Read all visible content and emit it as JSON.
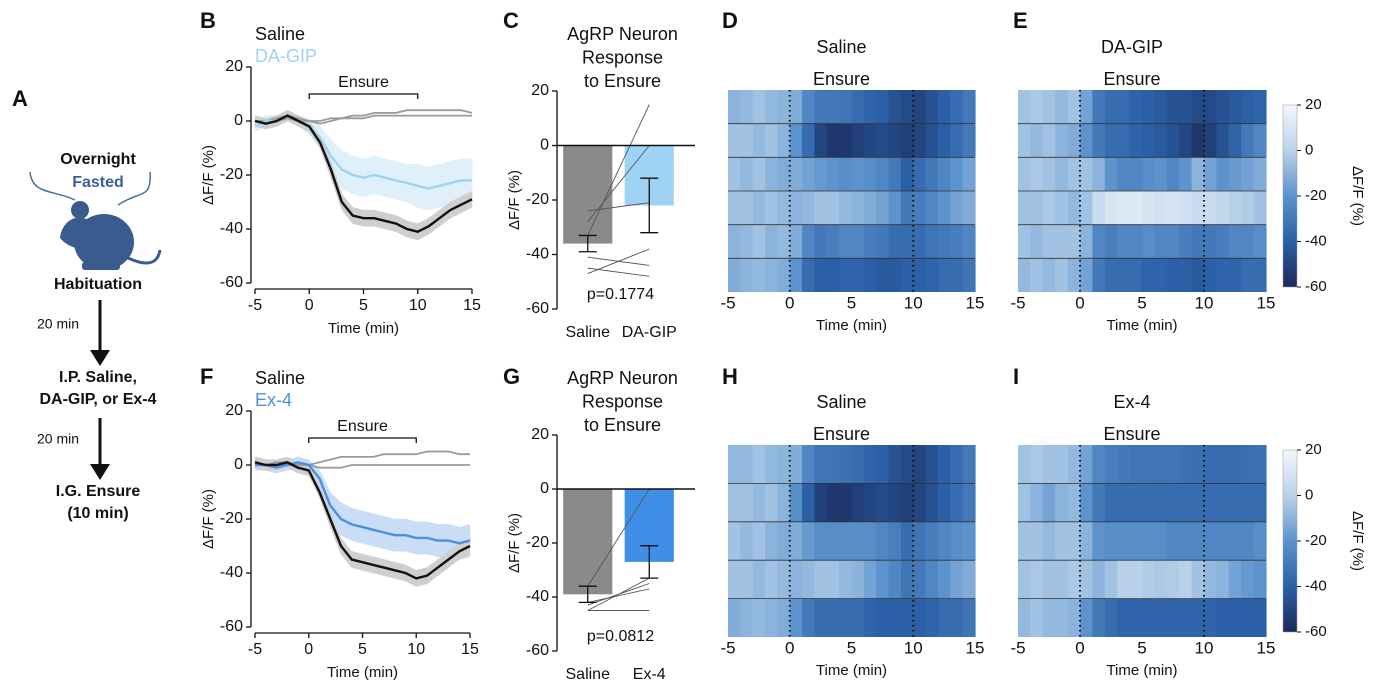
{
  "panel_a": {
    "label": "A",
    "step1": [
      "Overnight",
      "Fasted"
    ],
    "step1_after": "Habituation",
    "interval1": "20 min",
    "step2": [
      "I.P. Saline,",
      "DA-GIP, or Ex-4"
    ],
    "interval2": "20 min",
    "step3": [
      "I.G. Ensure",
      "(10 min)"
    ]
  },
  "chart_data": [
    {
      "panel": "B",
      "type": "line",
      "x": [
        -5,
        -4,
        -3,
        -2,
        -1,
        0,
        1,
        2,
        3,
        4,
        5,
        6,
        7,
        8,
        9,
        10,
        11,
        12,
        13,
        14,
        15
      ],
      "series": [
        {
          "color": "#9a9a9a",
          "values": [
            0,
            0,
            1,
            2,
            1,
            0,
            0,
            1,
            1,
            2,
            2,
            3,
            3,
            3,
            4,
            4,
            4,
            4,
            4,
            4,
            3
          ]
        },
        {
          "color": "#9a9a9a",
          "values": [
            0,
            0,
            0,
            1,
            0,
            0,
            -1,
            0,
            1,
            1,
            1,
            2,
            2,
            2,
            2,
            2,
            2,
            2,
            2,
            2,
            2
          ]
        },
        {
          "name": "DA-GIP",
          "color": "#9fd3f3",
          "band": "#dff0fb",
          "values": [
            -2,
            0,
            0,
            2,
            0,
            -2,
            -6,
            -13,
            -18,
            -20,
            -21,
            -20,
            -21,
            -22,
            -23,
            -24,
            -25,
            -24,
            -23,
            -22,
            -22
          ],
          "errors": [
            2,
            2,
            2,
            2,
            2,
            3,
            4,
            6,
            7,
            7,
            7,
            7,
            7,
            7,
            7,
            8,
            8,
            8,
            8,
            8,
            8
          ]
        },
        {
          "name": "Saline",
          "color": "#111111",
          "band": "#cfcfcf",
          "values": [
            0,
            -1,
            0,
            2,
            0,
            -2,
            -8,
            -18,
            -30,
            -35,
            -36,
            -36,
            -37,
            -38,
            -40,
            -41,
            -39,
            -36,
            -33,
            -31,
            -29
          ],
          "errors": [
            2,
            2,
            2,
            2,
            2,
            2,
            2,
            3,
            3,
            3,
            3,
            3,
            3,
            3,
            3,
            3,
            3,
            3,
            3,
            3,
            3
          ]
        }
      ],
      "legend_order": [
        3,
        2
      ],
      "annotation": {
        "text": "Ensure",
        "x": [
          0,
          10
        ],
        "y": 10
      },
      "xlim": [
        -5,
        15
      ],
      "xticks": [
        -5,
        0,
        5,
        10,
        15
      ],
      "ylim": [
        -60,
        20
      ],
      "yticks": [
        20,
        0,
        -20,
        -40,
        -60
      ],
      "xlabel": "Time (min)",
      "ylabel": "ΔF/F (%)"
    },
    {
      "panel": "C",
      "type": "bar",
      "title": [
        "AgRP Neuron",
        "Response",
        "to Ensure"
      ],
      "categories": [
        "Saline",
        "DA-GIP"
      ],
      "values": [
        -36,
        -22
      ],
      "errors": [
        3,
        10
      ],
      "colors": [
        "#8a8a8a",
        "#9fd3f5"
      ],
      "individuals": [
        [
          -33,
          15
        ],
        [
          -28,
          0
        ],
        [
          -24,
          -21
        ],
        [
          -41,
          -44
        ],
        [
          -45,
          -48
        ],
        [
          -47,
          -38
        ]
      ],
      "annotation": "p=0.1774",
      "ylim": [
        -60,
        20
      ],
      "yticks": [
        20,
        0,
        -20,
        -40,
        -60
      ],
      "ylabel": "ΔF/F (%)"
    },
    {
      "panel": "D",
      "type": "heatmap",
      "title": "Saline",
      "subtitle": "Ensure",
      "x": [
        -4.5,
        -3.5,
        -2.5,
        -1.5,
        -0.5,
        0.5,
        1.5,
        2.5,
        3.5,
        4.5,
        5.5,
        6.5,
        7.5,
        8.5,
        9.5,
        10.5,
        11.5,
        12.5,
        13.5,
        14.5
      ],
      "rows": [
        [
          -10,
          -8,
          -5,
          -8,
          -10,
          -12,
          -25,
          -30,
          -30,
          -32,
          -35,
          -38,
          -40,
          -45,
          -48,
          -50,
          -45,
          -40,
          -35,
          -30
        ],
        [
          -5,
          -5,
          -8,
          -5,
          -10,
          -20,
          -35,
          -50,
          -55,
          -55,
          -52,
          -50,
          -48,
          -50,
          -52,
          -50,
          -45,
          -40,
          -35,
          -30
        ],
        [
          -5,
          -8,
          -5,
          -10,
          -12,
          -12,
          -15,
          -18,
          -20,
          -22,
          -20,
          -22,
          -25,
          -30,
          -40,
          -35,
          -30,
          -25,
          -20,
          -15
        ],
        [
          -5,
          -5,
          -8,
          -5,
          -8,
          -10,
          -8,
          -5,
          -5,
          -8,
          -10,
          -12,
          -15,
          -20,
          -30,
          -28,
          -25,
          -20,
          -15,
          -12
        ],
        [
          -10,
          -8,
          -5,
          -10,
          -8,
          -12,
          -25,
          -30,
          -28,
          -25,
          -25,
          -28,
          -30,
          -35,
          -35,
          -35,
          -32,
          -30,
          -28,
          -25
        ],
        [
          -12,
          -10,
          -8,
          -10,
          -12,
          -20,
          -35,
          -40,
          -40,
          -38,
          -38,
          -40,
          -42,
          -42,
          -40,
          -40,
          -38,
          -35,
          -35,
          -32
        ]
      ],
      "markers": [
        0,
        10
      ],
      "xlim": [
        -5,
        15
      ],
      "xticks": [
        -5,
        0,
        5,
        10,
        15
      ],
      "xlabel": "Time (min)",
      "zlim": [
        -60,
        20
      ],
      "colorscale": [
        "#1b2a5a",
        "#2b5fa6",
        "#5c93cc",
        "#b9d2ea",
        "#f4f7fc"
      ]
    },
    {
      "panel": "E",
      "type": "heatmap",
      "title": "DA-GIP",
      "subtitle": "Ensure",
      "x": [
        -4.5,
        -3.5,
        -2.5,
        -1.5,
        -0.5,
        0.5,
        1.5,
        2.5,
        3.5,
        4.5,
        5.5,
        6.5,
        7.5,
        8.5,
        9.5,
        10.5,
        11.5,
        12.5,
        13.5,
        14.5
      ],
      "rows": [
        [
          -5,
          -3,
          -5,
          -8,
          -5,
          -15,
          -30,
          -35,
          -35,
          -38,
          -40,
          -42,
          -45,
          -45,
          -48,
          -48,
          -45,
          -42,
          -40,
          -38
        ],
        [
          -5,
          -8,
          -5,
          -10,
          -12,
          -20,
          -30,
          -35,
          -35,
          -38,
          -40,
          -42,
          -45,
          -50,
          -55,
          -52,
          -45,
          -38,
          -30,
          -25
        ],
        [
          -5,
          -3,
          -5,
          -8,
          -5,
          -5,
          -10,
          -20,
          -25,
          -25,
          -22,
          -20,
          -25,
          -20,
          -10,
          -15,
          -20,
          -18,
          -15,
          -12
        ],
        [
          -5,
          -5,
          -3,
          -5,
          -8,
          -5,
          5,
          10,
          12,
          12,
          10,
          8,
          10,
          8,
          5,
          5,
          3,
          0,
          -2,
          -5
        ],
        [
          -5,
          -8,
          -5,
          -5,
          -5,
          -10,
          -25,
          -28,
          -25,
          -25,
          -22,
          -25,
          -25,
          -28,
          -30,
          -30,
          -28,
          -25,
          -25,
          -22
        ],
        [
          -8,
          -5,
          -8,
          -5,
          -10,
          -15,
          -30,
          -35,
          -35,
          -35,
          -38,
          -38,
          -40,
          -40,
          -42,
          -40,
          -38,
          -38,
          -35,
          -35
        ]
      ],
      "markers": [
        0,
        10
      ],
      "xlim": [
        -5,
        15
      ],
      "xticks": [
        -5,
        0,
        5,
        10,
        15
      ],
      "xlabel": "Time (min)",
      "zlim": [
        -60,
        20
      ],
      "colorscale": [
        "#1b2a5a",
        "#2b5fa6",
        "#5c93cc",
        "#b9d2ea",
        "#f4f7fc"
      ],
      "colorbar": {
        "label": "ΔF/F (%)",
        "ticks": [
          20,
          0,
          -20,
          -40,
          -60
        ]
      }
    },
    {
      "panel": "F",
      "type": "line",
      "x": [
        -5,
        -4,
        -3,
        -2,
        -1,
        0,
        1,
        2,
        3,
        4,
        5,
        6,
        7,
        8,
        9,
        10,
        11,
        12,
        13,
        14,
        15
      ],
      "series": [
        {
          "color": "#9a9a9a",
          "values": [
            0,
            0,
            1,
            1,
            0,
            0,
            1,
            2,
            3,
            3,
            3,
            3,
            4,
            4,
            4,
            4,
            5,
            5,
            5,
            4,
            4
          ]
        },
        {
          "color": "#9a9a9a",
          "values": [
            0,
            0,
            0,
            0,
            0,
            0,
            -1,
            -1,
            -1,
            0,
            0,
            0,
            0,
            0,
            0,
            0,
            0,
            0,
            0,
            0,
            0
          ]
        },
        {
          "name": "Ex-4",
          "color": "#4a90e2",
          "band": "#c9def6",
          "values": [
            0,
            0,
            -1,
            0,
            1,
            0,
            -5,
            -15,
            -20,
            -22,
            -23,
            -24,
            -25,
            -26,
            -26,
            -27,
            -27,
            -28,
            -28,
            -29,
            -28
          ],
          "errors": [
            2,
            2,
            2,
            2,
            2,
            2,
            3,
            5,
            6,
            6,
            6,
            6,
            6,
            6,
            6,
            6,
            6,
            6,
            6,
            6,
            6
          ]
        },
        {
          "name": "Saline",
          "color": "#111111",
          "band": "#cfcfcf",
          "values": [
            1,
            0,
            0,
            1,
            -1,
            -2,
            -10,
            -20,
            -30,
            -35,
            -36,
            -37,
            -38,
            -39,
            -40,
            -42,
            -41,
            -38,
            -35,
            -32,
            -30
          ],
          "errors": [
            2,
            2,
            2,
            2,
            2,
            2,
            2,
            3,
            3,
            3,
            3,
            3,
            3,
            3,
            3,
            3,
            3,
            3,
            3,
            3,
            3
          ]
        }
      ],
      "legend_order": [
        3,
        2
      ],
      "annotation": {
        "text": "Ensure",
        "x": [
          0,
          10
        ],
        "y": 10
      },
      "xlim": [
        -5,
        15
      ],
      "xticks": [
        -5,
        0,
        5,
        10,
        15
      ],
      "ylim": [
        -60,
        20
      ],
      "yticks": [
        20,
        0,
        -20,
        -40,
        -60
      ],
      "xlabel": "Time (min)",
      "ylabel": "ΔF/F (%)"
    },
    {
      "panel": "G",
      "type": "bar",
      "title": [
        "AgRP Neuron",
        "Response",
        "to Ensure"
      ],
      "categories": [
        "Saline",
        "Ex-4"
      ],
      "values": [
        -39,
        -27
      ],
      "errors": [
        3,
        6
      ],
      "colors": [
        "#8a8a8a",
        "#3f8fe8"
      ],
      "individuals": [
        [
          -36,
          0
        ],
        [
          -45,
          -33
        ],
        [
          -43,
          -35
        ],
        [
          -42,
          -37
        ],
        [
          -45,
          -45
        ]
      ],
      "annotation": "p=0.0812",
      "ylim": [
        -60,
        20
      ],
      "yticks": [
        20,
        0,
        -20,
        -40,
        -60
      ],
      "ylabel": "ΔF/F (%)"
    },
    {
      "panel": "H",
      "type": "heatmap",
      "title": "Saline",
      "subtitle": "Ensure",
      "x": [
        -4.5,
        -3.5,
        -2.5,
        -1.5,
        -0.5,
        0.5,
        1.5,
        2.5,
        3.5,
        4.5,
        5.5,
        6.5,
        7.5,
        8.5,
        9.5,
        10.5,
        11.5,
        12.5,
        13.5,
        14.5
      ],
      "rows": [
        [
          -8,
          -8,
          -5,
          -8,
          -10,
          -12,
          -25,
          -32,
          -32,
          -33,
          -35,
          -38,
          -40,
          -45,
          -48,
          -50,
          -45,
          -40,
          -35,
          -30
        ],
        [
          -5,
          -5,
          -8,
          -5,
          -10,
          -22,
          -40,
          -52,
          -55,
          -55,
          -52,
          -50,
          -48,
          -50,
          -52,
          -50,
          -45,
          -40,
          -35,
          -30
        ],
        [
          -5,
          -8,
          -5,
          -10,
          -12,
          -12,
          -18,
          -22,
          -22,
          -22,
          -22,
          -22,
          -25,
          -28,
          -35,
          -32,
          -28,
          -25,
          -22,
          -20
        ],
        [
          -5,
          -5,
          -8,
          -5,
          -8,
          -10,
          -8,
          -5,
          -5,
          -8,
          -10,
          -15,
          -20,
          -25,
          -32,
          -30,
          -25,
          -20,
          -15,
          -12
        ],
        [
          -12,
          -10,
          -8,
          -10,
          -12,
          -20,
          -30,
          -35,
          -35,
          -35,
          -35,
          -38,
          -40,
          -40,
          -40,
          -40,
          -38,
          -35,
          -35,
          -32
        ]
      ],
      "markers": [
        0,
        10
      ],
      "xlim": [
        -5,
        15
      ],
      "xticks": [
        -5,
        0,
        5,
        10,
        15
      ],
      "xlabel": "Time (min)",
      "zlim": [
        -60,
        20
      ],
      "colorscale": [
        "#1b2a5a",
        "#2b5fa6",
        "#5c93cc",
        "#b9d2ea",
        "#f4f7fc"
      ]
    },
    {
      "panel": "I",
      "type": "heatmap",
      "title": "Ex-4",
      "subtitle": "Ensure",
      "x": [
        -4.5,
        -3.5,
        -2.5,
        -1.5,
        -0.5,
        0.5,
        1.5,
        2.5,
        3.5,
        4.5,
        5.5,
        6.5,
        7.5,
        8.5,
        9.5,
        10.5,
        11.5,
        12.5,
        13.5,
        14.5
      ],
      "rows": [
        [
          -5,
          -3,
          -5,
          -5,
          -8,
          -15,
          -25,
          -28,
          -30,
          -32,
          -32,
          -32,
          -32,
          -33,
          -34,
          -35,
          -35,
          -35,
          -34,
          -33
        ],
        [
          -5,
          -10,
          -15,
          -10,
          -8,
          -20,
          -30,
          -35,
          -35,
          -35,
          -35,
          -35,
          -35,
          -35,
          -35,
          -35,
          -35,
          -35,
          -35,
          -35
        ],
        [
          -5,
          -5,
          -8,
          -5,
          -5,
          -10,
          -20,
          -22,
          -22,
          -22,
          -22,
          -22,
          -25,
          -25,
          -25,
          -25,
          -25,
          -25,
          -25,
          -22
        ],
        [
          -5,
          -3,
          -5,
          -5,
          -3,
          -5,
          -10,
          -5,
          0,
          0,
          -2,
          -3,
          -2,
          0,
          -5,
          -8,
          -10,
          -15,
          -18,
          -20
        ],
        [
          -8,
          -5,
          -8,
          -8,
          -10,
          -20,
          -30,
          -35,
          -38,
          -38,
          -38,
          -38,
          -38,
          -38,
          -38,
          -38,
          -40,
          -40,
          -40,
          -40
        ]
      ],
      "markers": [
        0,
        10
      ],
      "xlim": [
        -5,
        15
      ],
      "xticks": [
        -5,
        0,
        5,
        10,
        15
      ],
      "xlabel": "Time (min)",
      "zlim": [
        -60,
        20
      ],
      "colorscale": [
        "#1b2a5a",
        "#2b5fa6",
        "#5c93cc",
        "#b9d2ea",
        "#f4f7fc"
      ],
      "colorbar": {
        "label": "ΔF/F (%)",
        "ticks": [
          20,
          0,
          -20,
          -40,
          -60
        ]
      }
    }
  ]
}
